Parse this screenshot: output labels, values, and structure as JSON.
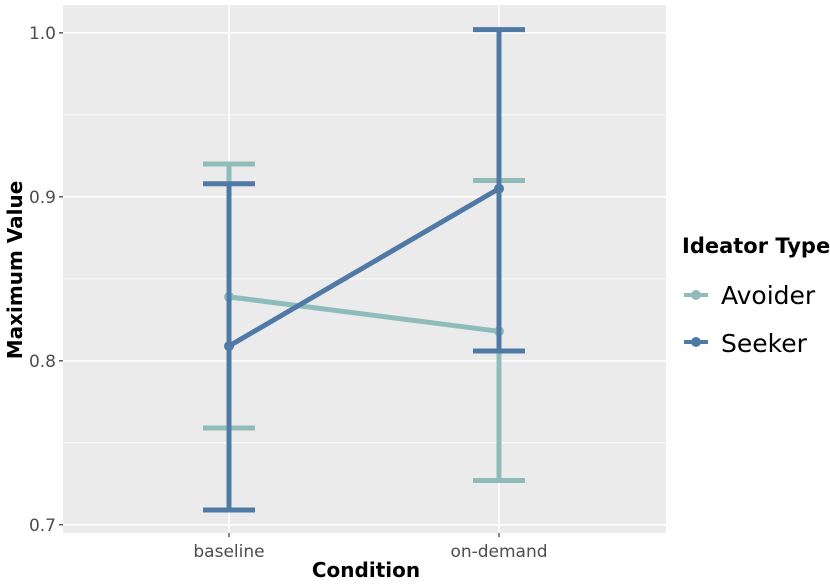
{
  "chart_data": {
    "type": "line",
    "title": "",
    "xlabel": "Condition",
    "ylabel": "Maximum Value",
    "categories": [
      "baseline",
      "on-demand"
    ],
    "ylim": [
      0.695,
      1.017
    ],
    "yticks": [
      0.7,
      0.8,
      0.9,
      1.0
    ],
    "ytick_labels": [
      "0.7",
      "0.8",
      "0.9",
      "1.0"
    ],
    "grid": true,
    "background": "#ebebeb",
    "legend": {
      "title": "Ideator Type",
      "position": "right"
    },
    "series": [
      {
        "name": "Avoider",
        "color": "#8fbcbb",
        "values": [
          0.839,
          0.818
        ],
        "err_low": [
          0.759,
          0.727
        ],
        "err_high": [
          0.92,
          0.91
        ]
      },
      {
        "name": "Seeker",
        "color": "#5079a5",
        "values": [
          0.809,
          0.905
        ],
        "err_low": [
          0.709,
          0.806
        ],
        "err_high": [
          0.908,
          1.002
        ]
      }
    ]
  }
}
